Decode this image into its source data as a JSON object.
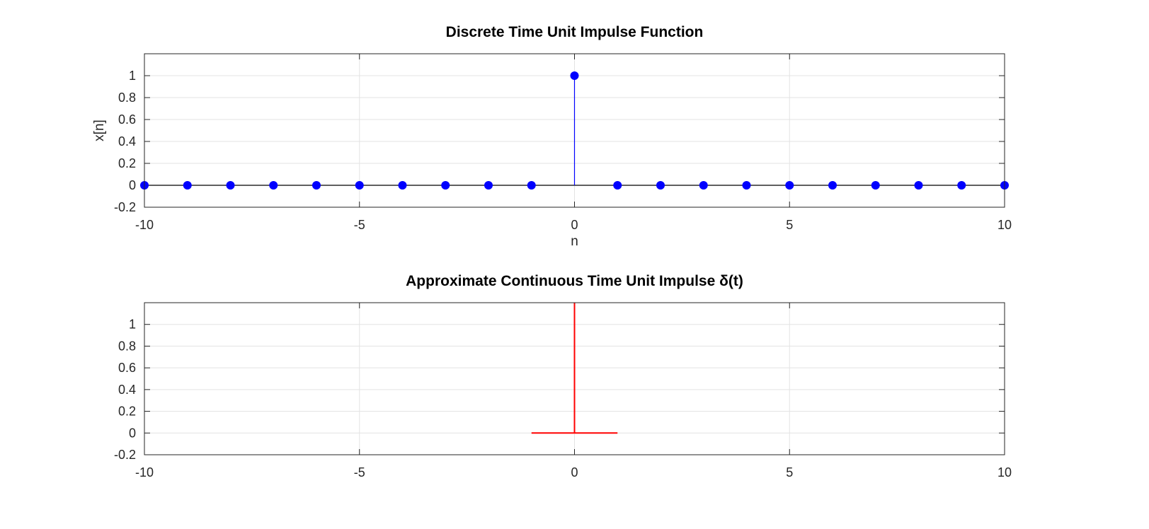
{
  "colors": {
    "discrete": "#0000ff",
    "continuous": "#ff0000",
    "baseline": "#000000"
  },
  "chart_data": [
    {
      "type": "stem",
      "title": "Discrete Time Unit Impulse Function",
      "xlabel": "n",
      "ylabel": "x[n]",
      "xlim": [
        -10,
        10
      ],
      "ylim": [
        -0.2,
        1.2
      ],
      "xticks": [
        -10,
        -5,
        0,
        5,
        10
      ],
      "yticks": [
        -0.2,
        0,
        0.2,
        0.4,
        0.6,
        0.8,
        1
      ],
      "grid": true,
      "series": [
        {
          "x": [
            -10,
            -9,
            -8,
            -7,
            -6,
            -5,
            -4,
            -3,
            -2,
            -1,
            0,
            1,
            2,
            3,
            4,
            5,
            6,
            7,
            8,
            9,
            10
          ],
          "y": [
            0,
            0,
            0,
            0,
            0,
            0,
            0,
            0,
            0,
            0,
            1,
            0,
            0,
            0,
            0,
            0,
            0,
            0,
            0,
            0,
            0
          ]
        }
      ]
    },
    {
      "type": "line",
      "title": "Approximate Continuous Time Unit Impulse δ(t)",
      "xlabel": "",
      "ylabel": "",
      "xlim": [
        -10,
        10
      ],
      "ylim": [
        -0.2,
        1.2
      ],
      "xticks": [
        -10,
        -5,
        0,
        5,
        10
      ],
      "yticks": [
        -0.2,
        0,
        0.2,
        0.4,
        0.6,
        0.8,
        1
      ],
      "grid": true,
      "series": [
        {
          "x": [
            -1,
            0,
            0,
            0,
            1
          ],
          "y": [
            0,
            0,
            1.2,
            0,
            0
          ]
        }
      ]
    }
  ]
}
